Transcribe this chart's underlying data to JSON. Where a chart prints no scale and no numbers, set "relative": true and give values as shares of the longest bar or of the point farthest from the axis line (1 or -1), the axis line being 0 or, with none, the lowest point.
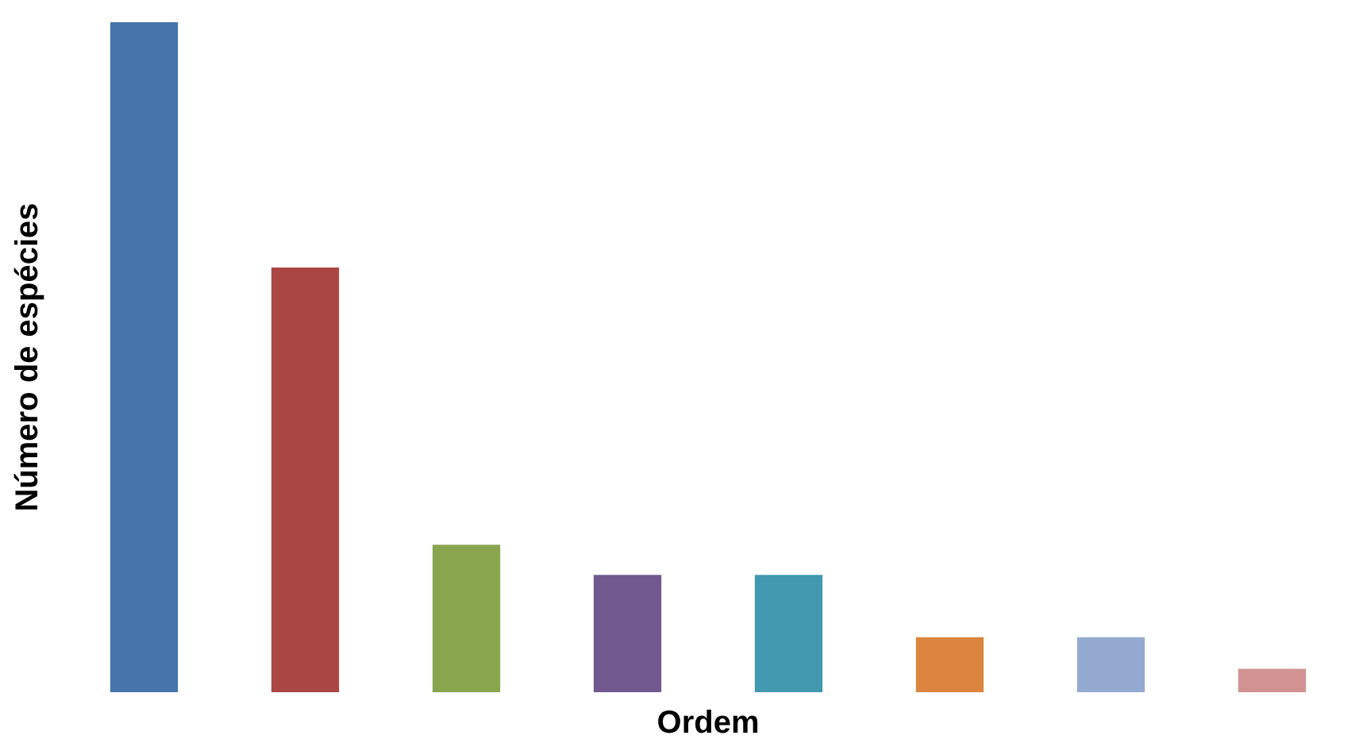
{
  "chart_data": {
    "type": "bar",
    "relative": true,
    "xlabel": "Ordem",
    "ylabel": "Número de espécies",
    "categories": [
      null,
      null,
      null,
      null,
      null,
      null,
      null,
      null
    ],
    "values": [
      1,
      0.634,
      0.22,
      0.175,
      0.175,
      0.082,
      0.082,
      0.035
    ],
    "colors": [
      "#4674aa",
      "#aa4643",
      "#89a54e",
      "#71588f",
      "#4198af",
      "#db843d",
      "#93a9cf",
      "#d09392"
    ],
    "grid": false,
    "legend": false
  }
}
